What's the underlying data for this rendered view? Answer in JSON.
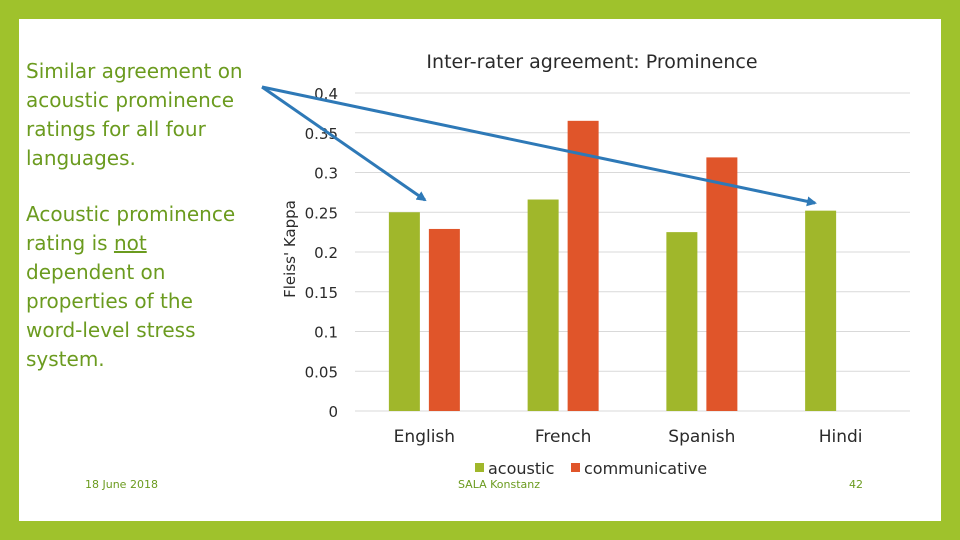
{
  "slide": {
    "paragraph1": "Similar agreement on acoustic prominence ratings for all four languages.",
    "paragraph2": {
      "before": "Acoustic prominence rating is ",
      "emphasis": "not",
      "after": " dependent on properties of the word-level stress system."
    },
    "footer": {
      "date": "18 June 2018",
      "venue": "SALA Konstanz",
      "page": "42"
    }
  },
  "colors": {
    "frame": "#9fc22c",
    "acoustic": "#a0b72b",
    "communicative": "#e0552a",
    "arrow": "#2e79b7",
    "text_green": "#6b9b1f"
  },
  "chart_data": {
    "type": "bar",
    "title": "Inter-rater agreement: Prominence",
    "ylabel": "Fleiss' Kappa",
    "xlabel": "",
    "categories": [
      "English",
      "French",
      "Spanish",
      "Hindi"
    ],
    "series": [
      {
        "name": "acoustic",
        "values": [
          0.25,
          0.266,
          0.225,
          0.252
        ]
      },
      {
        "name": "communicative",
        "values": [
          0.229,
          0.365,
          0.319,
          null
        ]
      }
    ],
    "ylim": [
      0,
      0.4
    ],
    "yticks": [
      0,
      0.05,
      0.1,
      0.15,
      0.2,
      0.25,
      0.3,
      0.35,
      0.4
    ],
    "ytick_labels": [
      "0",
      "0.05",
      "0.1",
      "0.15",
      "0.2",
      "0.25",
      "0.3",
      "0.35",
      "0.4"
    ],
    "grid": true,
    "legend": "bottom"
  }
}
